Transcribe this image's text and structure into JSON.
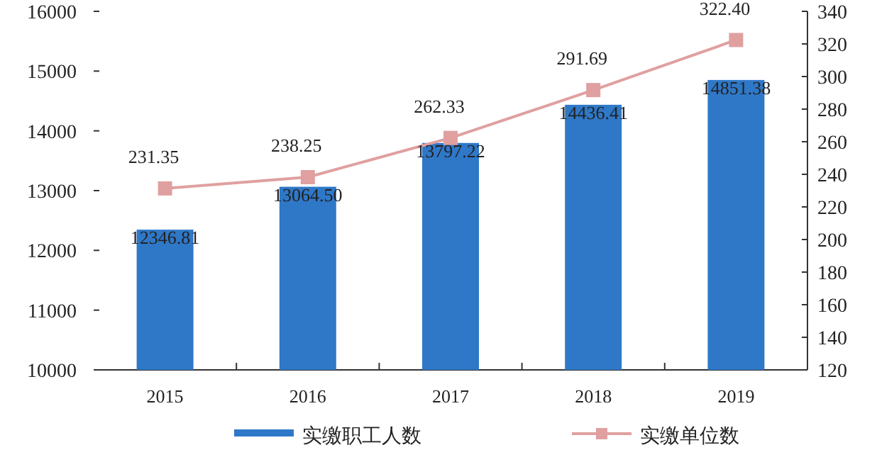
{
  "chart_data": {
    "type": "bar",
    "categories": [
      "2015",
      "2016",
      "2017",
      "2018",
      "2019"
    ],
    "series": [
      {
        "name": "实缴职工人数",
        "color": "#2f78c8",
        "values": [
          12346.81,
          13064.5,
          13797.22,
          14436.41,
          14851.38
        ],
        "value_labels": [
          "12346.81",
          "13064.50",
          "13797.22",
          "14436.41",
          "14851.38"
        ]
      },
      {
        "name": "实缴单位数",
        "type": "line",
        "axis": "y2",
        "color": "#e0a0a0",
        "values": [
          231.35,
          238.25,
          262.33,
          291.69,
          322.4
        ],
        "value_labels": [
          "231.35",
          "238.25",
          "262.33",
          "291.69",
          "322.40"
        ]
      }
    ],
    "ylim": [
      10000,
      16000
    ],
    "yticks": [
      10000,
      11000,
      12000,
      13000,
      14000,
      15000,
      16000
    ],
    "y2lim": [
      120,
      340
    ],
    "y2ticks": [
      120,
      140,
      160,
      180,
      200,
      220,
      240,
      260,
      280,
      300,
      320,
      340
    ],
    "legend": "bottom",
    "marker": "square"
  }
}
